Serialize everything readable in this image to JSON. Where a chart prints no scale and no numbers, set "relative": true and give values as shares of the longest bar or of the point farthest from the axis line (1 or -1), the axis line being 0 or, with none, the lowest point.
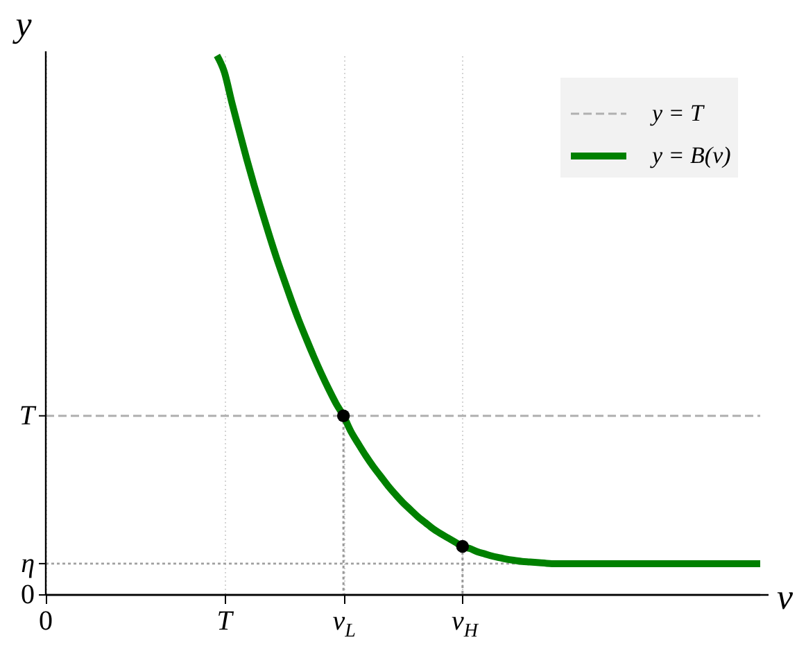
{
  "chart_data": {
    "type": "line",
    "relative": true,
    "xlabel": "v",
    "ylabel": "y",
    "categories": [
      "0",
      null,
      null,
      null,
      null,
      null,
      null,
      null,
      null,
      null,
      null,
      null,
      null,
      null,
      null,
      null,
      null,
      null,
      null,
      null,
      null,
      null,
      null,
      null,
      "T",
      null,
      null,
      null,
      null,
      null,
      null,
      null,
      null,
      null,
      null,
      null,
      null,
      null,
      null,
      null,
      "v$_{L}$",
      null,
      null,
      null,
      null,
      null,
      null,
      null,
      null,
      null,
      null,
      null,
      null,
      null,
      null,
      null,
      "v$_{H}$",
      null,
      null,
      null,
      null,
      null,
      null,
      null,
      null,
      null,
      null,
      null,
      null,
      null,
      null,
      null,
      null,
      null,
      null,
      null,
      null,
      null,
      null,
      null,
      null,
      null,
      null,
      null,
      null,
      null,
      null,
      null,
      null,
      null,
      null,
      null,
      null,
      null,
      null,
      null,
      null
    ],
    "series": [
      {
        "name": "y = T",
        "color": "#b0b0b0",
        "line_style": "dashed",
        "values": [
          0.332,
          0.332,
          0.332,
          0.332,
          0.332,
          0.332,
          0.332,
          0.332,
          0.332,
          0.332,
          0.332,
          0.332,
          0.332,
          0.332,
          0.332,
          0.332,
          0.332,
          0.332,
          0.332,
          0.332,
          0.332,
          0.332,
          0.332,
          0.332,
          0.332,
          0.332,
          0.332,
          0.332,
          0.332,
          0.332,
          0.332,
          0.332,
          0.332,
          0.332,
          0.332,
          0.332,
          0.332,
          0.332,
          0.332,
          0.332,
          0.332,
          0.332,
          0.332,
          0.332,
          0.332,
          0.332,
          0.332,
          0.332,
          0.332,
          0.332,
          0.332,
          0.332,
          0.332,
          0.332,
          0.332,
          0.332,
          0.332,
          0.332,
          0.332,
          0.332,
          0.332,
          0.332,
          0.332,
          0.332,
          0.332,
          0.332,
          0.332,
          0.332,
          0.332,
          0.332,
          0.332,
          0.332,
          0.332,
          0.332,
          0.332,
          0.332,
          0.332,
          0.332,
          0.332,
          0.332,
          0.332,
          0.332,
          0.332,
          0.332,
          0.332,
          0.332,
          0.332,
          0.332,
          0.332,
          0.332,
          0.332,
          0.332,
          0.332,
          0.332,
          0.332,
          0.332,
          0.332
        ]
      },
      {
        "name": "y = B(v)",
        "color": "#008000",
        "line_style": "solid",
        "values": [
          null,
          null,
          null,
          null,
          null,
          null,
          null,
          null,
          null,
          null,
          null,
          null,
          null,
          null,
          null,
          null,
          null,
          null,
          null,
          null,
          null,
          null,
          null,
          1.0,
          0.969,
          0.913,
          0.86,
          0.808,
          0.759,
          0.713,
          0.668,
          0.625,
          0.585,
          0.546,
          0.509,
          0.475,
          0.442,
          0.411,
          0.382,
          0.355,
          0.332,
          0.303,
          0.28,
          0.258,
          0.238,
          0.22,
          0.202,
          0.186,
          0.171,
          0.158,
          0.145,
          0.134,
          0.123,
          0.114,
          0.106,
          0.098,
          0.09,
          0.086,
          0.08,
          0.076,
          0.072,
          0.069,
          0.066,
          0.064,
          0.062,
          0.061,
          0.06,
          0.059,
          0.058,
          0.058,
          0.058,
          0.058,
          0.058,
          0.058,
          0.058,
          0.058,
          0.058,
          0.058,
          0.058,
          0.058,
          0.058,
          0.058,
          0.058,
          0.058,
          0.058,
          0.058,
          0.058,
          0.058,
          0.058,
          0.058,
          0.058,
          0.058,
          0.058,
          0.058,
          0.058,
          0.058,
          0.058
        ]
      },
      {
        "type": "lollipop",
        "color": "#000000",
        "values": [
          null,
          null,
          null,
          null,
          null,
          null,
          null,
          null,
          null,
          null,
          null,
          null,
          null,
          null,
          null,
          null,
          null,
          null,
          null,
          null,
          null,
          null,
          null,
          null,
          null,
          null,
          null,
          null,
          null,
          null,
          null,
          null,
          null,
          null,
          null,
          null,
          null,
          null,
          null,
          null,
          0.332,
          null,
          null,
          null,
          null,
          null,
          null,
          null,
          null,
          null,
          null,
          null,
          null,
          null,
          null,
          null,
          0.09,
          null,
          null,
          null,
          null,
          null,
          null,
          null,
          null,
          null,
          null,
          null,
          null,
          null,
          null,
          null,
          null,
          null,
          null,
          null,
          null,
          null,
          null,
          null,
          null,
          null,
          null,
          null,
          null,
          null,
          null,
          null,
          null,
          null,
          null,
          null,
          null,
          null,
          null,
          null,
          null
        ]
      }
    ],
    "ref_lines": [
      {
        "axis": "y",
        "value": 0.058,
        "label": "η",
        "color": "#a0a0a0",
        "line_style": "dotted"
      },
      {
        "axis": "y",
        "value": 0,
        "label": "0",
        "color": "#000000",
        "line_style": "solid"
      }
    ],
    "annotations": [
      {
        "text": "T",
        "x": "0",
        "y": 0.332
      }
    ],
    "grid": "x",
    "legend": "top right"
  }
}
